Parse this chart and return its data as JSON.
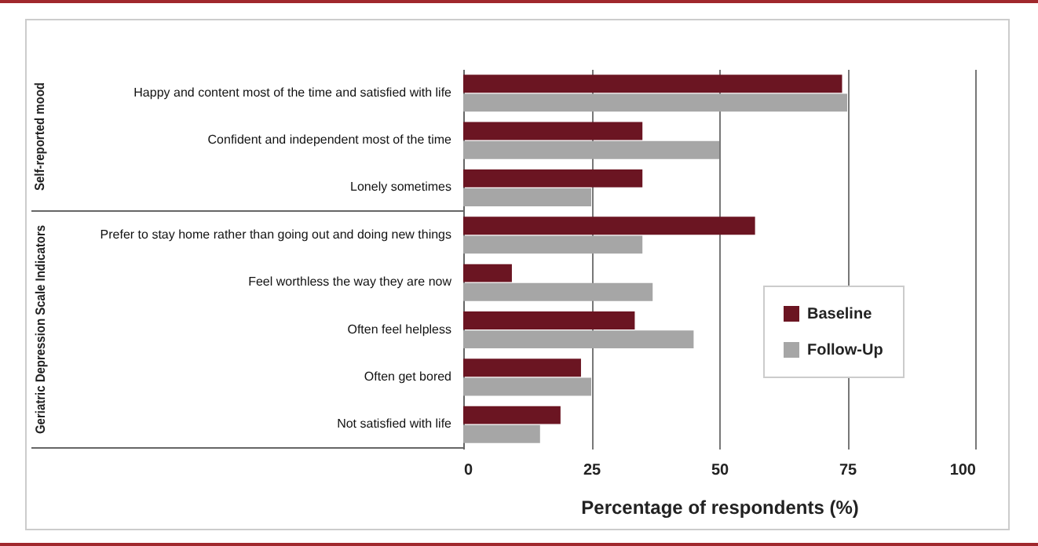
{
  "chart_data": {
    "type": "bar",
    "orientation": "horizontal",
    "categories": [
      "Happy and content most of the time and satisfied with life",
      "Confident and independent most of the time",
      "Lonely sometimes",
      "Prefer to stay home rather than going out and doing new things",
      "Feel worthless the way they are now",
      "Often feel helpless",
      "Often get bored",
      "Not satisfied with life"
    ],
    "series": [
      {
        "name": "Baseline",
        "color": "#6b1522",
        "values": [
          74,
          35,
          35,
          57,
          9.5,
          33.5,
          23,
          19
        ]
      },
      {
        "name": "Follow-Up",
        "color": "#a6a6a6",
        "values": [
          75,
          50,
          25,
          35,
          37,
          45,
          25,
          15
        ]
      }
    ],
    "xlabel": "Percentage of respondents (%)",
    "xlim": [
      0,
      100
    ],
    "xticks": [
      0,
      25,
      50,
      75,
      100
    ],
    "grid": "x",
    "legend": "bottom right",
    "annotations": [
      "Self-reported mood",
      "Geriatric Depression Scale Indicators"
    ]
  }
}
